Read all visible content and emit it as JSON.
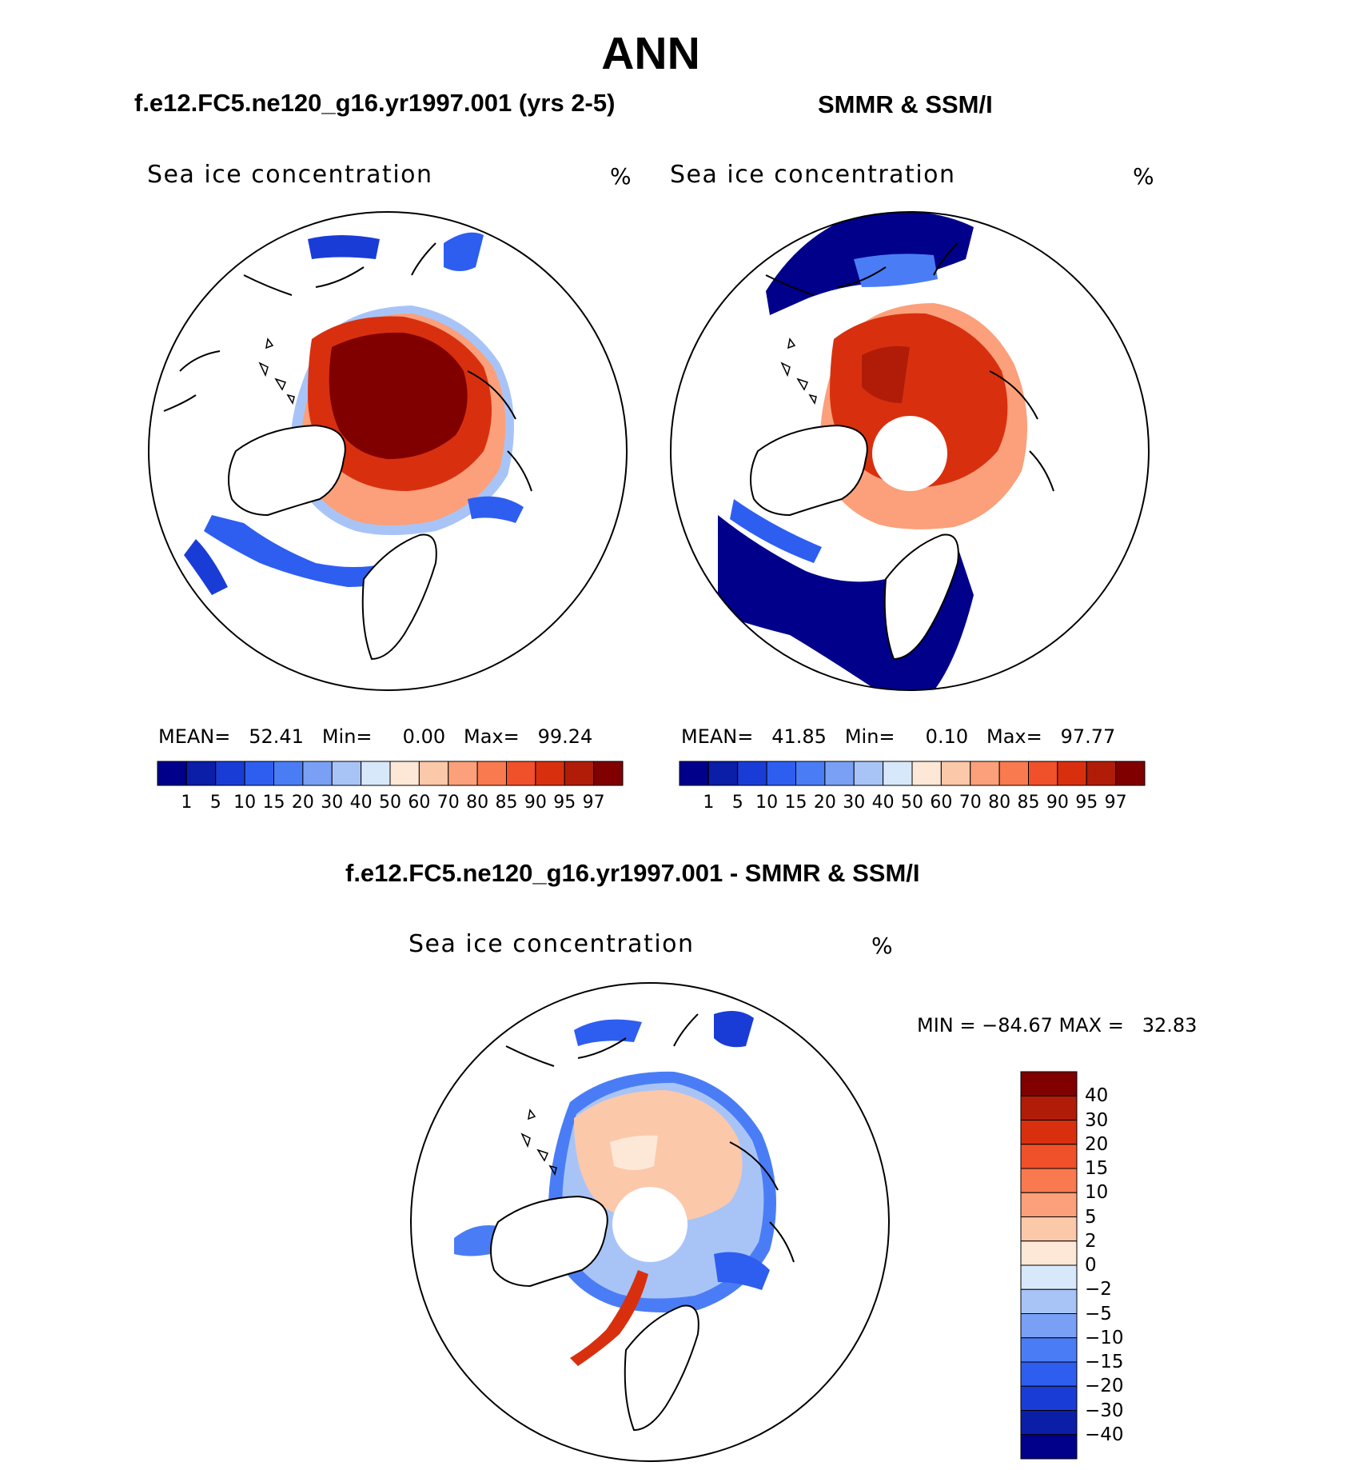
{
  "title": "ANN",
  "panels": [
    {
      "id": "model",
      "title": "f.e12.FC5.ne120_g16.yr1997.001 (yrs 2-5)",
      "field_label": "Sea ice concentration",
      "unit": "%",
      "stats_text": "MEAN=   52.41   Min=     0.00   Max=   99.24",
      "mean": 52.41,
      "min": 0.0,
      "max": 99.24,
      "pole_hole": false
    },
    {
      "id": "obs",
      "title": "SMMR & SSM/I",
      "field_label": "Sea ice concentration",
      "unit": "%",
      "stats_text": "MEAN=   41.85   Min=     0.10   Max=   97.77",
      "mean": 41.85,
      "min": 0.1,
      "max": 97.77,
      "pole_hole": true
    }
  ],
  "abs_colorbar": {
    "levels": [
      "1",
      "5",
      "10",
      "15",
      "20",
      "30",
      "40",
      "50",
      "60",
      "70",
      "80",
      "85",
      "90",
      "95",
      "97"
    ],
    "colors": [
      "#00008b",
      "#0a1ea8",
      "#1a3cd6",
      "#2e5ef0",
      "#4a7df5",
      "#7aa0f5",
      "#a8c4f7",
      "#d8e8fb",
      "#fde8d8",
      "#fcc8aa",
      "#fba07a",
      "#f87a4e",
      "#f0502a",
      "#d8300f",
      "#b01c08",
      "#800000"
    ]
  },
  "difference": {
    "title": "f.e12.FC5.ne120_g16.yr1997.001 - SMMR & SSM/I",
    "field_label": "Sea ice concentration",
    "unit": "%",
    "stats_text": "MIN = −84.67 MAX =   32.83",
    "min": -84.67,
    "max": 32.83
  },
  "diff_colorbar": {
    "levels": [
      "40",
      "30",
      "20",
      "15",
      "10",
      "5",
      "2",
      "0",
      "−2",
      "−5",
      "−10",
      "−15",
      "−20",
      "−30",
      "−40"
    ],
    "colors": [
      "#800000",
      "#b01c08",
      "#d8300f",
      "#f0502a",
      "#f87a4e",
      "#fba07a",
      "#fcc8aa",
      "#fde8d8",
      "#d8e8fb",
      "#a8c4f7",
      "#7aa0f5",
      "#4a7df5",
      "#2e5ef0",
      "#1a3cd6",
      "#0a1ea8",
      "#00008b"
    ]
  }
}
